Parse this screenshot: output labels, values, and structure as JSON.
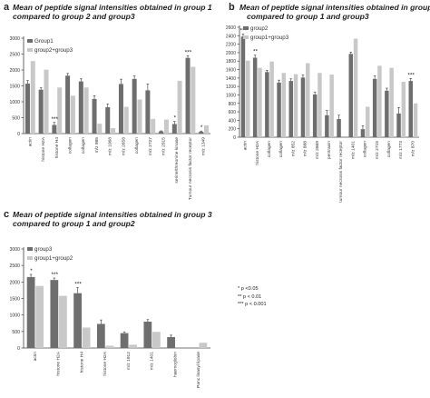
{
  "panels": [
    {
      "letter": "a",
      "title_line1": "Mean of peptide signal intensities obtained in group 1",
      "title_line2": "compared to group 2 and group3"
    },
    {
      "letter": "b",
      "title_line1": "Mean of peptide signal intensities obtained in group 2",
      "title_line2": "compared to group 1 and group3"
    },
    {
      "letter": "c",
      "title_line1": "Mean of peptide signal intensities obtained in group 3",
      "title_line2": "compared to group 1 and group2"
    }
  ],
  "significance_legend": [
    "* p <0.05",
    "** p < 0.01",
    "*** p < 0.001"
  ],
  "colors": {
    "dark": "#6e6e6e",
    "light": "#c8c8c8"
  },
  "chart_data": [
    {
      "type": "bar",
      "ylim": [
        0,
        3000
      ],
      "yticks": [
        0,
        500,
        1000,
        1500,
        2000,
        2500,
        3000
      ],
      "categories": [
        "actin",
        "histone H2A",
        "histone H4",
        "collagen",
        "collagen",
        "m/z 985",
        "m/z 1068",
        "m/z 2658",
        "collagen",
        "m/z 2727",
        "m/z 2915",
        "serine/threonine kinase",
        "Tumour necrosis factor receptor",
        "m/z 1349"
      ],
      "series": [
        {
          "name": "Group1",
          "values": [
            1570,
            1380,
            270,
            1820,
            1640,
            1090,
            830,
            1560,
            1720,
            1360,
            70,
            300,
            2380,
            60
          ],
          "errors": [
            100,
            60,
            80,
            70,
            80,
            100,
            100,
            150,
            90,
            200,
            15,
            80,
            70,
            20
          ]
        },
        {
          "name": "group2+group3",
          "values": [
            2280,
            2010,
            1450,
            1190,
            1450,
            310,
            170,
            840,
            1070,
            460,
            440,
            1660,
            2100,
            260
          ],
          "errors": [
            0,
            0,
            0,
            0,
            0,
            0,
            0,
            0,
            0,
            0,
            0,
            0,
            0,
            0
          ]
        }
      ],
      "annotations": [
        {
          "category_index": 2,
          "text": "***"
        },
        {
          "category_index": 11,
          "text": "*"
        },
        {
          "category_index": 12,
          "text": "***"
        },
        {
          "category_index": 13,
          "text": "*"
        }
      ]
    },
    {
      "type": "bar",
      "ylim": [
        0,
        2600
      ],
      "yticks": [
        0,
        200,
        400,
        600,
        800,
        1000,
        1200,
        1400,
        1600,
        1800,
        2000,
        2200,
        2400,
        2600
      ],
      "categories": [
        "actin",
        "histone H2A",
        "collagen",
        "collagen",
        "m/z 852",
        "m/z 888",
        "m/z 2869",
        "pentraxin",
        "tumour necrosis factor receptor",
        "m/z 1401",
        "collagen",
        "m/z 2715",
        "collagen",
        "m/z 1773",
        "m/z 870"
      ],
      "series": [
        {
          "name": "group2",
          "values": [
            2380,
            1880,
            1540,
            1290,
            1330,
            1410,
            1010,
            520,
            430,
            1970,
            190,
            1380,
            1100,
            560,
            1330
          ],
          "errors": [
            60,
            60,
            40,
            60,
            50,
            60,
            60,
            110,
            90,
            40,
            80,
            70,
            60,
            140,
            60
          ]
        },
        {
          "name": "group1+group3",
          "values": [
            1810,
            1640,
            1790,
            1520,
            1490,
            1750,
            1520,
            1480,
            0,
            2330,
            720,
            1690,
            1640,
            1310,
            800
          ],
          "errors": [
            0,
            0,
            0,
            0,
            0,
            0,
            0,
            0,
            0,
            0,
            0,
            0,
            0,
            0,
            0
          ]
        }
      ],
      "annotations": [
        {
          "category_index": 0,
          "text": "***"
        },
        {
          "category_index": 1,
          "text": "**"
        },
        {
          "category_index": 14,
          "text": "***"
        }
      ]
    },
    {
      "type": "bar",
      "ylim": [
        0,
        3000
      ],
      "yticks": [
        0,
        500,
        1000,
        1500,
        2000,
        2500,
        3000
      ],
      "categories": [
        "actin",
        "histone H2A",
        "histone H4",
        "histone H2A",
        "m/z 1912",
        "m/z 1401",
        "haemoglobin",
        "Panc lisasyl lipase"
      ],
      "series": [
        {
          "name": "group3",
          "values": [
            2150,
            2060,
            1660,
            730,
            450,
            800,
            330,
            0
          ],
          "errors": [
            80,
            60,
            170,
            120,
            40,
            60,
            60,
            0
          ]
        },
        {
          "name": "group1+group2",
          "values": [
            1880,
            1580,
            620,
            70,
            100,
            490,
            0,
            160
          ],
          "errors": [
            0,
            0,
            0,
            0,
            0,
            0,
            0,
            0
          ]
        }
      ],
      "annotations": [
        {
          "category_index": 0,
          "text": "*"
        },
        {
          "category_index": 1,
          "text": "***"
        },
        {
          "category_index": 2,
          "text": "***"
        }
      ]
    }
  ]
}
